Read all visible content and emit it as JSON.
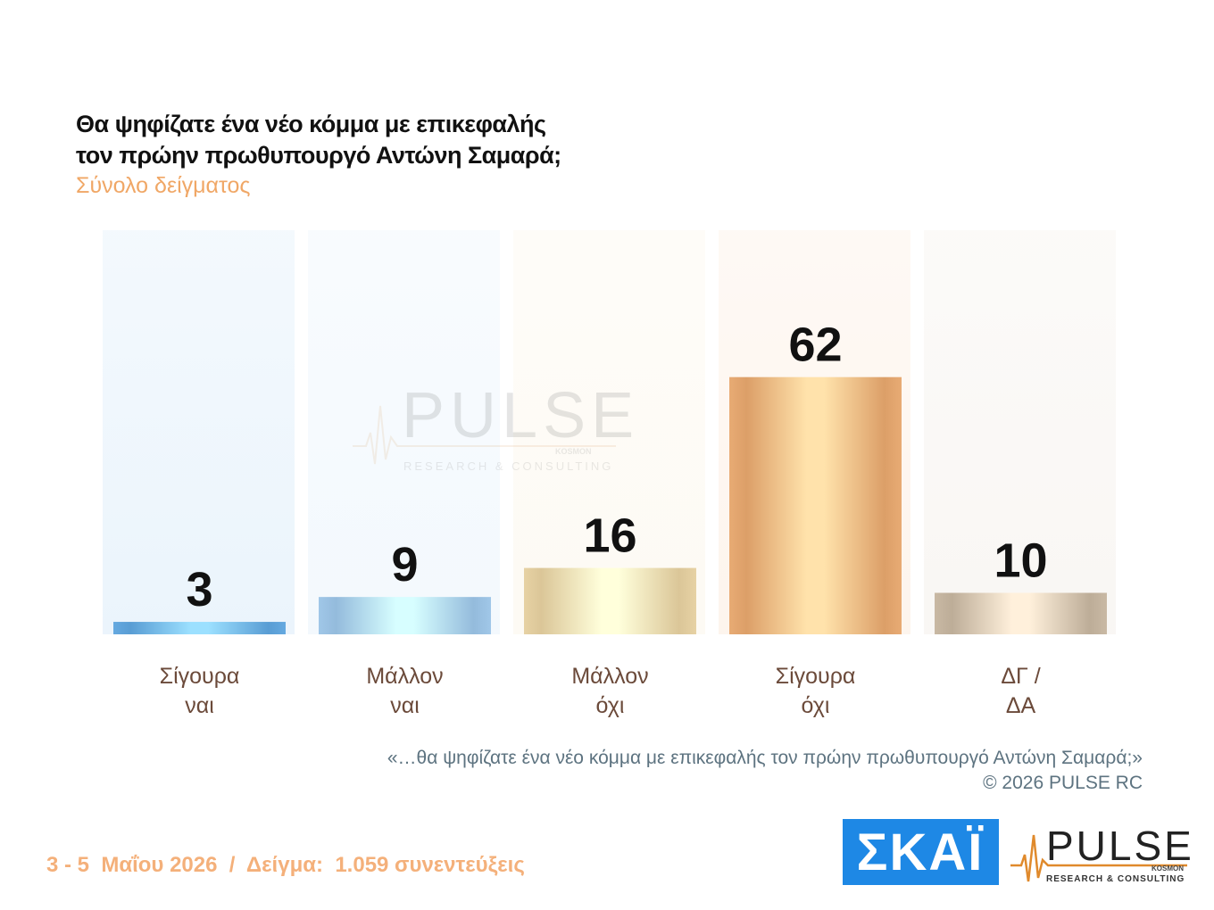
{
  "title_line1": "Θα ψηφίζατε ένα νέο κόμμα με επικεφαλής",
  "title_line2": "τον πρώην πρωθυπουργό Αντώνη Σαμαρά;",
  "subtitle": "Σύνολο δείγματος",
  "chart_data": {
    "type": "bar",
    "title": "Θα ψηφίζατε ένα νέο κόμμα με επικεφαλής τον πρώην πρωθυπουργό Αντώνη Σαμαρά;",
    "subtitle": "Σύνολο δείγματος",
    "categories": [
      [
        "Σίγουρα",
        "ναι"
      ],
      [
        "Μάλλον",
        "ναι"
      ],
      [
        "Μάλλον",
        "όχι"
      ],
      [
        "Σίγουρα",
        "όχι"
      ],
      [
        "ΔΓ /",
        "ΔΑ"
      ]
    ],
    "values": [
      3,
      9,
      16,
      62,
      10
    ],
    "colors": [
      "#6fb3ea",
      "#aad1f2",
      "#f1dcae",
      "#f2b57e",
      "#d3c3ae"
    ],
    "ylim": [
      0,
      100
    ],
    "grid": false,
    "legend": "none",
    "data_labels": true
  },
  "quote_line1": "«…θα ψηφίζατε ένα νέο κόμμα με επικεφαλής τον πρώην πρωθυπουργό Αντώνη Σαμαρά;»",
  "quote_line2": "©  2026  PULSE RC",
  "footer_info": "3 - 5  Μαΐου 2026  /  Δείγμα:  1.059 συνεντεύξεις",
  "logos": {
    "skai_text": "ΣΚΑΪ",
    "pulse_text": "PULSE",
    "pulse_kosmon": "KOSMON",
    "pulse_tagline": "RESEARCH & CONSULTING"
  },
  "watermark": {
    "text": "PULSE",
    "kosmon": "KOSMON",
    "tagline": "RESEARCH & CONSULTING"
  }
}
